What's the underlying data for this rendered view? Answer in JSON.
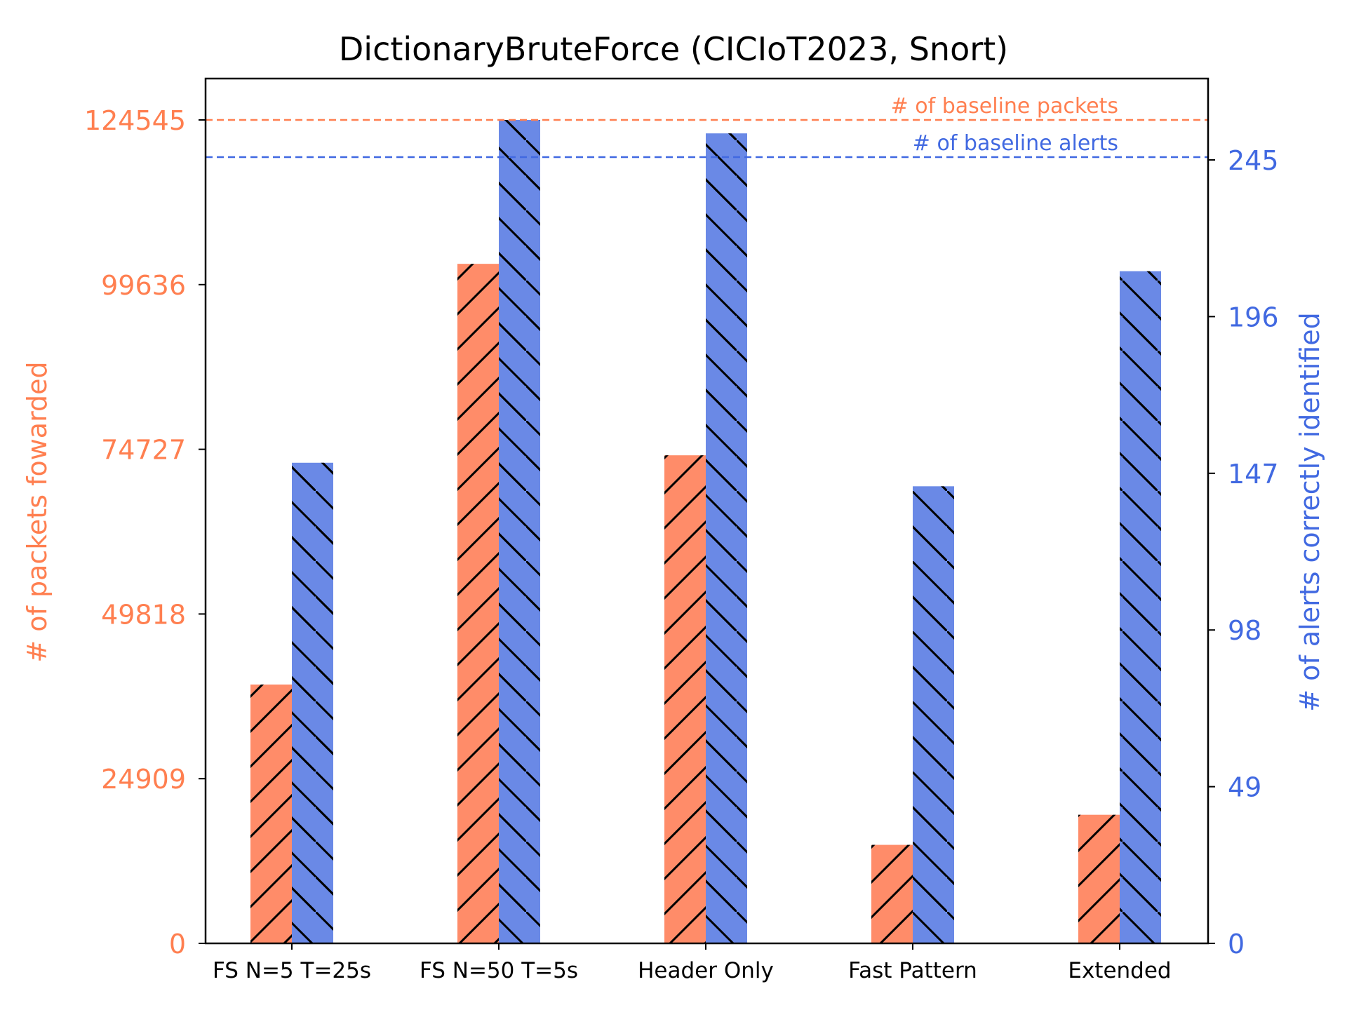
{
  "chart_data": {
    "type": "bar",
    "title": "DictionaryBruteForce (CICIoT2023, Snort)",
    "categories": [
      "FS N=5 T=25s",
      "FS N=50 T=5s",
      "Header Only",
      "Fast Pattern",
      "Extended"
    ],
    "series": [
      {
        "axis": "left",
        "color": "#ff8c69",
        "hatch": "forward",
        "values": [
          39150,
          102780,
          73820,
          14900,
          19450
        ]
      },
      {
        "axis": "right",
        "color": "#6a89e6",
        "hatch": "back",
        "values": [
          143,
          245,
          241,
          136,
          200
        ]
      }
    ],
    "y_left": {
      "label": "# of packets fowarded",
      "color": "#ff7f50",
      "range": [
        0,
        124545
      ],
      "ticks": [
        0,
        24909,
        49818,
        74727,
        99636,
        124545
      ],
      "tick_labels": [
        "0",
        "24909",
        "49818",
        "74727",
        "99636",
        "124545"
      ]
    },
    "y_right": {
      "label": "# of alerts correctly identified",
      "color": "#4169e1",
      "range": [
        0,
        245
      ],
      "ticks": [
        0,
        49,
        98,
        147,
        196,
        245
      ],
      "tick_labels": [
        "0",
        "49",
        "98",
        "147",
        "196",
        "245"
      ]
    },
    "reference_lines": [
      {
        "label": "# of baseline packets",
        "axis": "left",
        "value": 124545,
        "color": "#ff7f50"
      },
      {
        "label": "# of baseline alerts",
        "axis": "right",
        "value": 245,
        "color": "#4169e1"
      }
    ],
    "grid": false
  }
}
